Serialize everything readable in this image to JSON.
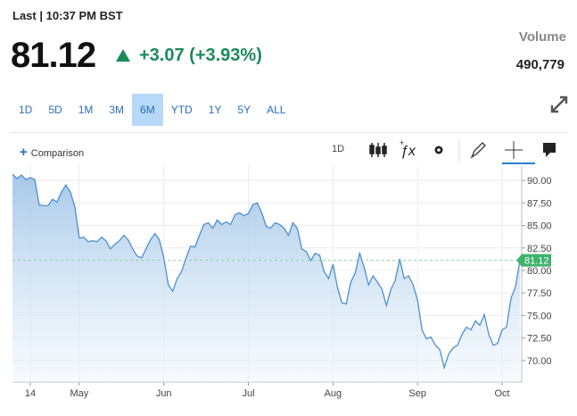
{
  "header": {
    "last": "Last | 10:37 PM BST",
    "price": "81.12",
    "change": "+3.07 (+3.93%)",
    "volume_label": "Volume",
    "volume": "490,779"
  },
  "ranges": {
    "items": [
      "1D",
      "5D",
      "1M",
      "3M",
      "6M",
      "YTD",
      "1Y",
      "5Y",
      "ALL"
    ],
    "selected": 4
  },
  "toolbar": {
    "comparison": "Comparison",
    "interval": "1D"
  },
  "chart_data": {
    "type": "line",
    "color": "#4d8fcf",
    "grid": true,
    "values": [
      90.7,
      90.2,
      90.6,
      90.1,
      90.3,
      90.1,
      87.3,
      87.2,
      87.2,
      87.9,
      87.6,
      88.7,
      89.5,
      88.7,
      87.1,
      83.6,
      83.7,
      83.2,
      83.3,
      83.2,
      83.7,
      83.3,
      82.4,
      82.9,
      83.3,
      83.9,
      83.4,
      82.4,
      81.6,
      81.4,
      82.4,
      83.4,
      84.1,
      83.4,
      81.4,
      78.4,
      77.7,
      79.1,
      79.9,
      81.4,
      82.7,
      82.6,
      83.9,
      85.1,
      85.3,
      84.7,
      85.6,
      85.1,
      85.4,
      85.1,
      86.2,
      86.4,
      86.1,
      86.3,
      87.3,
      87.5,
      86.4,
      84.9,
      84.7,
      85.3,
      85.1,
      84.7,
      83.9,
      85.3,
      84.7,
      82.4,
      82.1,
      81.1,
      81.9,
      81.7,
      79.9,
      79.1,
      80.7,
      78.1,
      76.4,
      76.3,
      78.7,
      79.7,
      81.9,
      80.4,
      78.4,
      79.4,
      78.7,
      77.9,
      76.1,
      77.9,
      78.9,
      81.3,
      79.1,
      79.4,
      78.4,
      76.7,
      73.4,
      72.4,
      72.6,
      71.7,
      71.2,
      69.2,
      70.7,
      71.4,
      71.7,
      72.9,
      73.7,
      73.4,
      74.4,
      73.9,
      75.1,
      72.9,
      71.7,
      71.9,
      73.4,
      73.7,
      76.9,
      78.2,
      81.12
    ],
    "xlim": [
      0,
      114
    ],
    "xticks": [
      {
        "value": 4,
        "label": "14"
      },
      {
        "value": 15,
        "label": "May"
      },
      {
        "value": 34,
        "label": "Jun"
      },
      {
        "value": 53,
        "label": "Jul"
      },
      {
        "value": 72,
        "label": "Aug"
      },
      {
        "value": 91,
        "label": "Sep"
      },
      {
        "value": 110,
        "label": "Oct"
      }
    ],
    "ylim": [
      67.6,
      91.6
    ],
    "yticks": [
      {
        "value": 70,
        "label": "70.00"
      },
      {
        "value": 72.5,
        "label": "72.50"
      },
      {
        "value": 75,
        "label": "75.00"
      },
      {
        "value": 77.5,
        "label": "77.50"
      },
      {
        "value": 80,
        "label": "80.00"
      },
      {
        "value": 82.5,
        "label": "82.50"
      },
      {
        "value": 85,
        "label": "85.00"
      },
      {
        "value": 87.5,
        "label": "87.50"
      },
      {
        "value": 90,
        "label": "90.00"
      }
    ]
  }
}
